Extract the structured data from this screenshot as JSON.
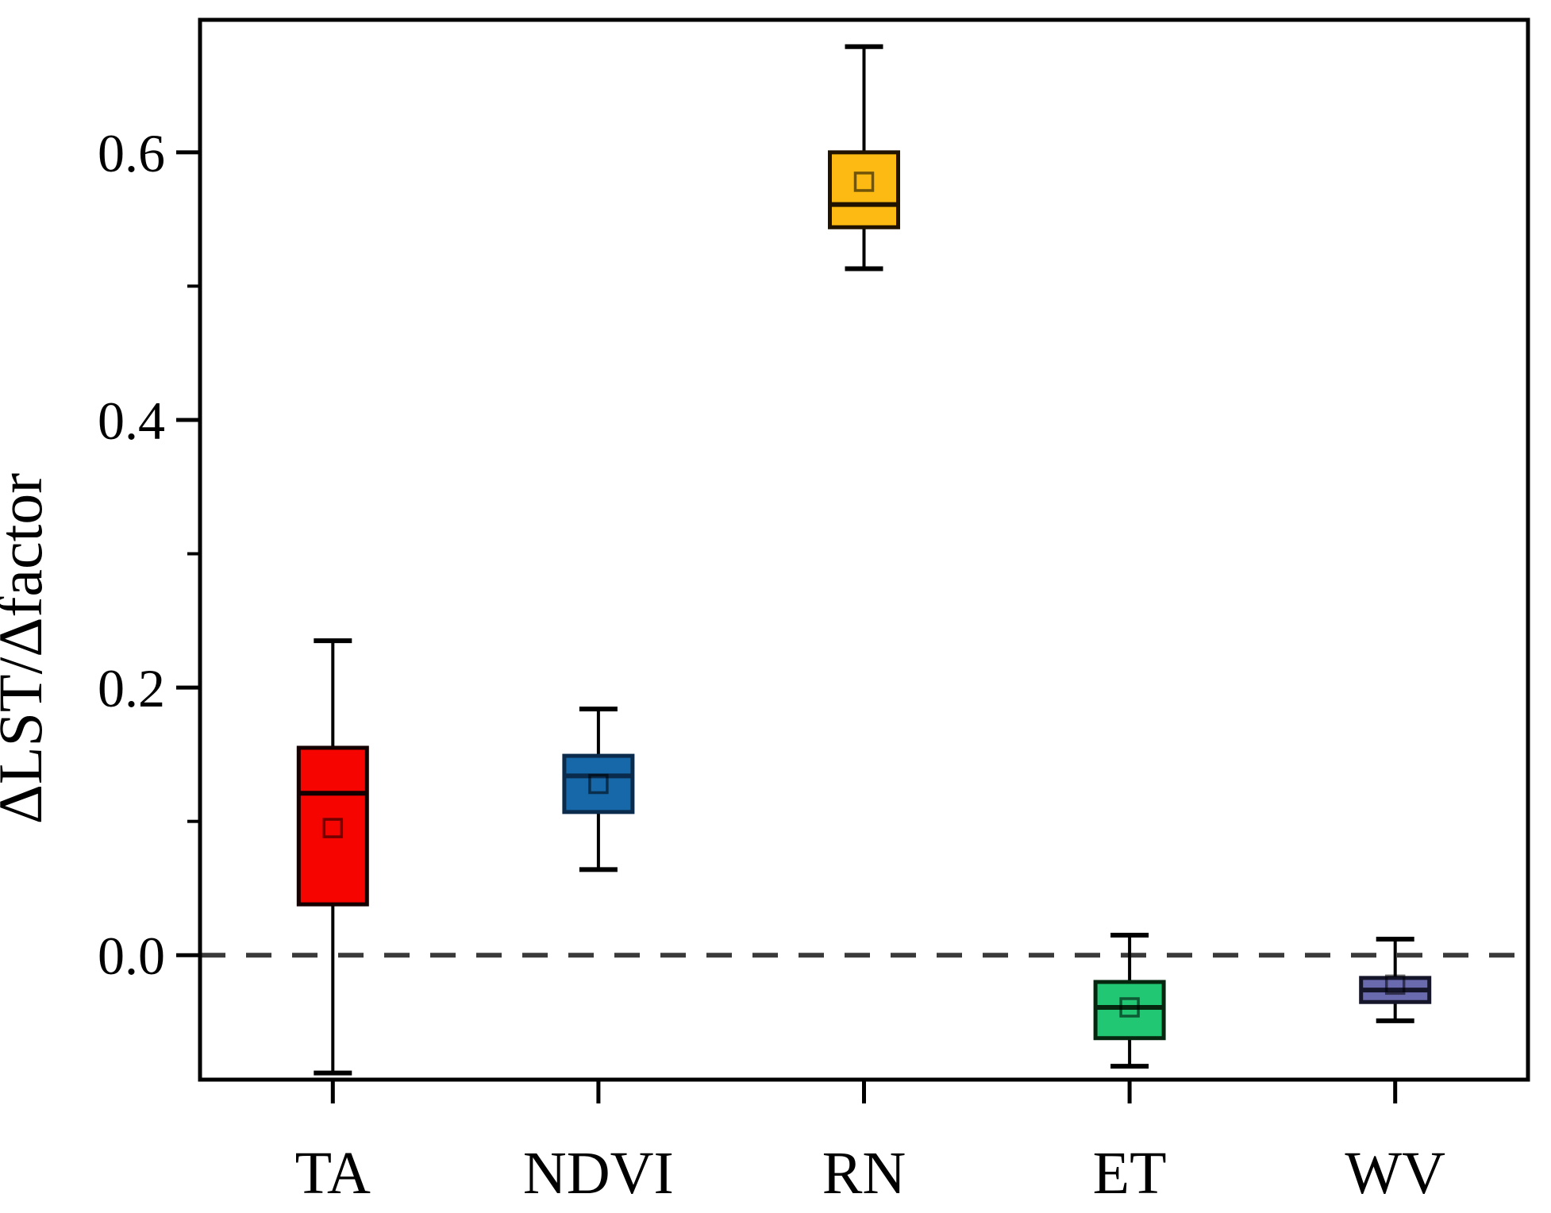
{
  "figure": {
    "background": "#ffffff",
    "frame_color": "#000000"
  },
  "chart_data": {
    "type": "boxplot",
    "title": "",
    "xlabel": "",
    "ylabel": "ΔLST/Δfactor",
    "ylim": [
      -0.093,
      0.699
    ],
    "grid": false,
    "legend": "none",
    "y_axis": {
      "major_tick_values": [
        0.0,
        0.2,
        0.4,
        0.6
      ],
      "major_tick_labels": [
        "0.0",
        "0.2",
        "0.4",
        "0.6"
      ],
      "minor_tick_values": [
        0.1,
        0.3,
        0.5
      ]
    },
    "reference_line": {
      "value": 0.0,
      "style": "dashed",
      "color": "#3a3a3a"
    },
    "categories": [
      "TA",
      "NDVI",
      "RN",
      "ET",
      "WV"
    ],
    "series": [
      {
        "name": "TA",
        "fill": "#F50400",
        "edge": "#140000",
        "whisker_low": -0.088,
        "q1": 0.038,
        "median": 0.121,
        "mean": 0.095,
        "q3": 0.155,
        "whisker_high": 0.235
      },
      {
        "name": "NDVI",
        "fill": "#1668A8",
        "edge": "#0B2B4C",
        "whisker_low": 0.064,
        "q1": 0.107,
        "median": 0.134,
        "mean": 0.128,
        "q3": 0.149,
        "whisker_high": 0.184
      },
      {
        "name": "RN",
        "fill": "#FDBA12",
        "edge": "#201400",
        "whisker_low": 0.513,
        "q1": 0.544,
        "median": 0.561,
        "mean": 0.578,
        "q3": 0.6,
        "whisker_high": 0.679
      },
      {
        "name": "ET",
        "fill": "#21C773",
        "edge": "#06260F",
        "whisker_low": -0.083,
        "q1": -0.062,
        "median": -0.039,
        "mean": -0.039,
        "q3": -0.02,
        "whisker_high": 0.015
      },
      {
        "name": "WV",
        "fill": "#6A6BAE",
        "edge": "#16162B",
        "whisker_low": -0.049,
        "q1": -0.035,
        "median": -0.026,
        "mean": -0.022,
        "q3": -0.017,
        "whisker_high": 0.012
      }
    ]
  }
}
